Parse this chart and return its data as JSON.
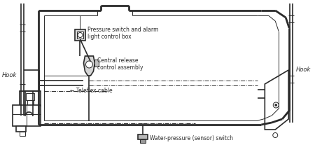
{
  "bg_color": "#ffffff",
  "line_color": "#2a2a2a",
  "labels": {
    "hook_left": "Hook",
    "hook_right": "Hook",
    "pressure_switch": "Pressure switch and alarm\nlight control box",
    "central_release": "Central release\ncontrol assembly",
    "teleflex": "← Teleflex cable",
    "water_pressure": "Water-pressure (sensor) switch"
  },
  "fig_width": 4.5,
  "fig_height": 2.17,
  "dpi": 100
}
